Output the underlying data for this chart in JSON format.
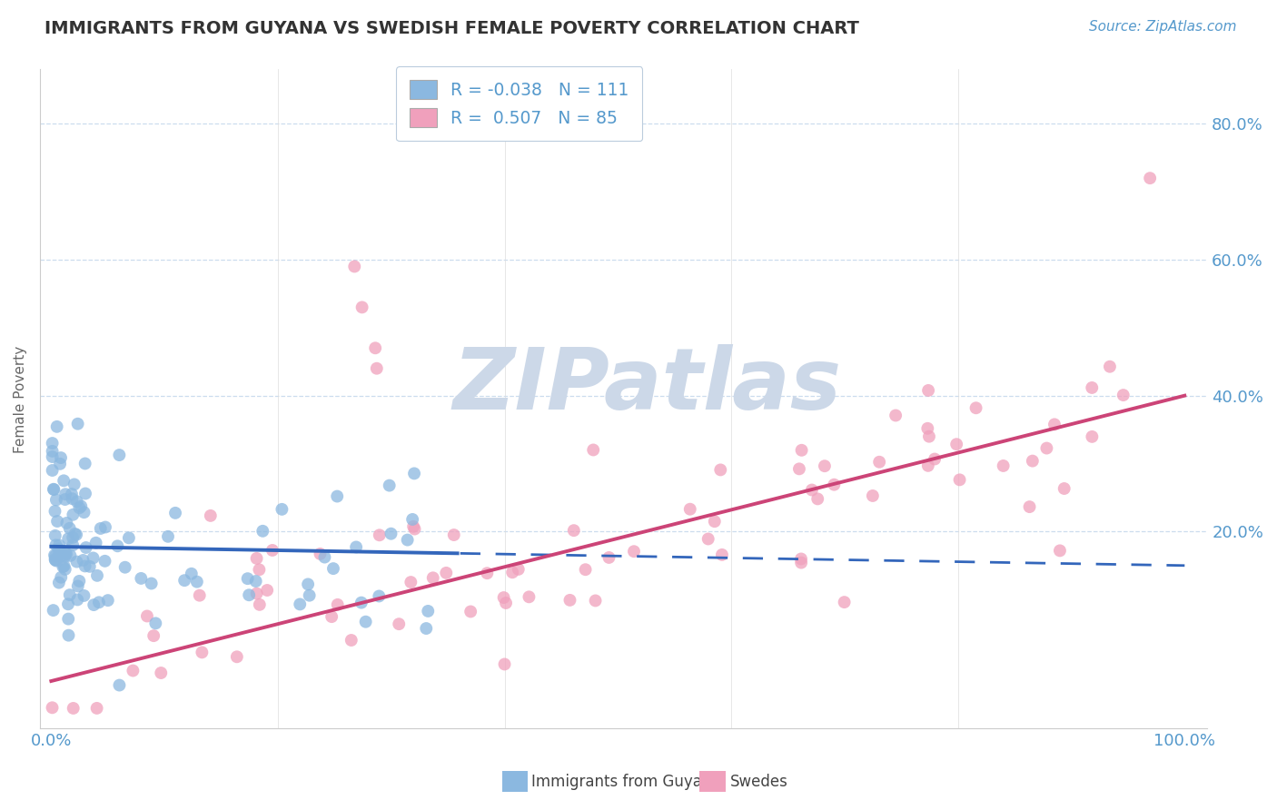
{
  "title": "IMMIGRANTS FROM GUYANA VS SWEDISH FEMALE POVERTY CORRELATION CHART",
  "source": "Source: ZipAtlas.com",
  "ylabel": "Female Poverty",
  "ytick_labels": [
    "20.0%",
    "40.0%",
    "60.0%",
    "80.0%"
  ],
  "ytick_values": [
    0.2,
    0.4,
    0.6,
    0.8
  ],
  "xtick_labels_left": "0.0%",
  "xtick_labels_right": "100.0%",
  "xlim": [
    -0.01,
    1.02
  ],
  "ylim": [
    -0.09,
    0.88
  ],
  "color_blue": "#8bb8e0",
  "color_pink": "#f0a0bc",
  "color_blue_line": "#3366bb",
  "color_pink_line": "#cc4477",
  "color_axis_text": "#5599cc",
  "color_title": "#333333",
  "color_grid": "#ccddee",
  "color_watermark": "#ccd8e8",
  "background_color": "#ffffff",
  "n_blue": 111,
  "n_pink": 85,
  "r_blue": -0.038,
  "r_pink": 0.507
}
